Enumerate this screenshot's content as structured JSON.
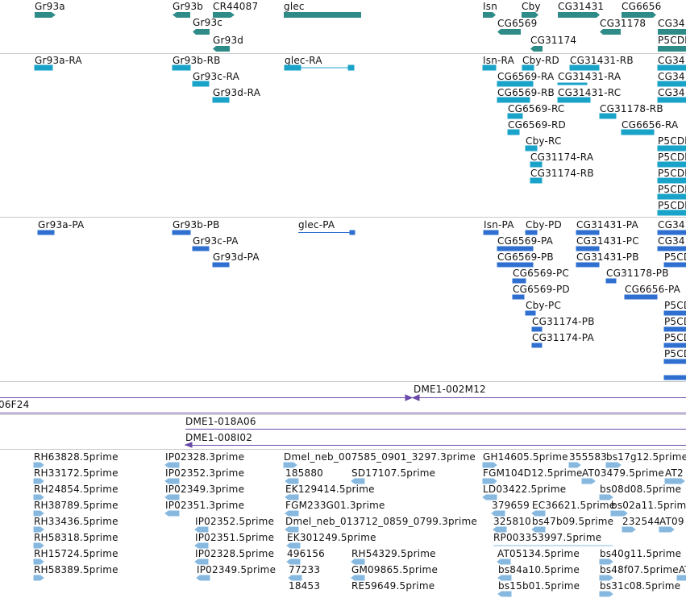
{
  "colors": {
    "gene": "#2e8b87",
    "transcript": "#1aa3c9",
    "polypeptide": "#2f6fd0",
    "clone": "#6a4aa8",
    "est": "#86b8e0"
  },
  "genes": [
    {
      "label": "Gr93a"
    },
    {
      "label": "Gr93b"
    },
    {
      "label": "CR44087"
    },
    {
      "label": "glec"
    },
    {
      "label": "Isn"
    },
    {
      "label": "Cby"
    },
    {
      "label": "CG31431"
    },
    {
      "label": "CG6656"
    },
    {
      "label": "Gr93c"
    },
    {
      "label": "CG6569"
    },
    {
      "label": "CG31178"
    },
    {
      "label": "CG34"
    },
    {
      "label": "Gr93d"
    },
    {
      "label": "CG31174"
    },
    {
      "label": "P5CDh"
    }
  ],
  "transcripts": [
    {
      "label": "Gr93a-RA"
    },
    {
      "label": "Gr93b-RB"
    },
    {
      "label": "glec-RA"
    },
    {
      "label": "Isn-RA"
    },
    {
      "label": "Cby-RD"
    },
    {
      "label": "CG31431-RB"
    },
    {
      "label": "CG34"
    },
    {
      "label": "Gr93c-RA"
    },
    {
      "label": "CG6569-RA"
    },
    {
      "label": "CG31431-RA"
    },
    {
      "label": "CG34"
    },
    {
      "label": "Gr93d-RA"
    },
    {
      "label": "CG6569-RB"
    },
    {
      "label": "CG31431-RC"
    },
    {
      "label": "CG34"
    },
    {
      "label": "CG6569-RC"
    },
    {
      "label": "CG31178-RB"
    },
    {
      "label": "CG6569-RD"
    },
    {
      "label": "CG6656-RA"
    },
    {
      "label": "Cby-RC"
    },
    {
      "label": "P5CDh"
    },
    {
      "label": "CG31174-RA"
    },
    {
      "label": "P5CDh"
    },
    {
      "label": "CG31174-RB"
    },
    {
      "label": "P5CDh"
    },
    {
      "label": "P5CDh"
    },
    {
      "label": "P5CDh"
    }
  ],
  "polypeptides": [
    {
      "label": "Gr93a-PA"
    },
    {
      "label": "Gr93b-PB"
    },
    {
      "label": "glec-PA"
    },
    {
      "label": "Isn-PA"
    },
    {
      "label": "Cby-PD"
    },
    {
      "label": "CG31431-PA"
    },
    {
      "label": "CG34"
    },
    {
      "label": "Gr93c-PA"
    },
    {
      "label": "CG6569-PA"
    },
    {
      "label": "CG31431-PC"
    },
    {
      "label": "CG34"
    },
    {
      "label": "Gr93d-PA"
    },
    {
      "label": "CG6569-PB"
    },
    {
      "label": "CG31431-PB"
    },
    {
      "label": "P5CDh"
    },
    {
      "label": "CG6569-PC"
    },
    {
      "label": "CG31178-PB"
    },
    {
      "label": "CG6569-PD"
    },
    {
      "label": "CG6656-PA"
    },
    {
      "label": "Cby-PC"
    },
    {
      "label": "P5CDh"
    },
    {
      "label": "CG31174-PB"
    },
    {
      "label": "P5CDh"
    },
    {
      "label": "CG31174-PA"
    },
    {
      "label": "P5CDh"
    },
    {
      "label": "P5CDh"
    }
  ],
  "clones_a": [
    {
      "label": "DME1-002M12"
    },
    {
      "label": "06F24"
    }
  ],
  "clones_b": [
    {
      "label": "DME1-018A06"
    },
    {
      "label": "DME1-008I02"
    }
  ],
  "ests": [
    {
      "label": "RH63828.5prime"
    },
    {
      "label": "IP02328.3prime"
    },
    {
      "label": "Dmel_neb_007585_0901_3297.3prime"
    },
    {
      "label": "GH14605.5prime"
    },
    {
      "label": "355583"
    },
    {
      "label": "bs17g12.5prime"
    },
    {
      "label": "RH33172.5prime"
    },
    {
      "label": "IP02352.3prime"
    },
    {
      "label": "185880"
    },
    {
      "label": "SD17107.5prime"
    },
    {
      "label": "FGM104D12.5prime"
    },
    {
      "label": "AT03479.5prime"
    },
    {
      "label": "AT2"
    },
    {
      "label": "RH24854.5prime"
    },
    {
      "label": "IP02349.3prime"
    },
    {
      "label": "EK129414.5prime"
    },
    {
      "label": "LD03422.5prime"
    },
    {
      "label": "bs08d08.5prime"
    },
    {
      "label": "RH38789.5prime"
    },
    {
      "label": "IP02351.3prime"
    },
    {
      "label": "FGM233G01.3prime"
    },
    {
      "label": "379659"
    },
    {
      "label": "EC36621.5prime"
    },
    {
      "label": "bs02a11.5prime"
    },
    {
      "label": "RH33436.5prime"
    },
    {
      "label": "IP02352.5prime"
    },
    {
      "label": "Dmel_neb_013712_0859_0799.3prime"
    },
    {
      "label": "325810"
    },
    {
      "label": "bs47b09.5prime"
    },
    {
      "label": "232544"
    },
    {
      "label": "AT09"
    },
    {
      "label": "RH58318.5prime"
    },
    {
      "label": "IP02351.5prime"
    },
    {
      "label": "EK301249.5prime"
    },
    {
      "label": "RP003353997.5prime"
    },
    {
      "label": "RH15724.5prime"
    },
    {
      "label": "IP02328.5prime"
    },
    {
      "label": "496156"
    },
    {
      "label": "RH54329.5prime"
    },
    {
      "label": "AT05134.5prime"
    },
    {
      "label": "bs40g11.5prime"
    },
    {
      "label": "RH58389.5prime"
    },
    {
      "label": "IP02349.5prime"
    },
    {
      "label": "77233"
    },
    {
      "label": "GM09865.5prime"
    },
    {
      "label": "bs84a10.5prime"
    },
    {
      "label": "bs48f07.5primeAT"
    },
    {
      "label": "18453"
    },
    {
      "label": "RE59649.5prime"
    },
    {
      "label": "bs15b01.5prime"
    },
    {
      "label": "bs31c08.5prime"
    }
  ]
}
